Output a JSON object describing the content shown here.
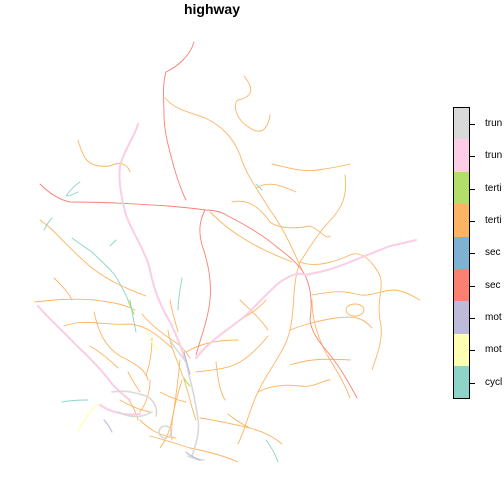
{
  "title": "highway",
  "legend": {
    "items": [
      {
        "label": "trun",
        "color": "#d9d9d9"
      },
      {
        "label": "trun",
        "color": "#fccde5"
      },
      {
        "label": "terti",
        "color": "#b3de69"
      },
      {
        "label": "terti",
        "color": "#fdb462"
      },
      {
        "label": "sec",
        "color": "#80b1d3"
      },
      {
        "label": "sec",
        "color": "#fb8072"
      },
      {
        "label": "mot",
        "color": "#bebada"
      },
      {
        "label": "mot",
        "color": "#ffffb3"
      },
      {
        "label": "cycl",
        "color": "#8dd3c7"
      }
    ]
  }
}
